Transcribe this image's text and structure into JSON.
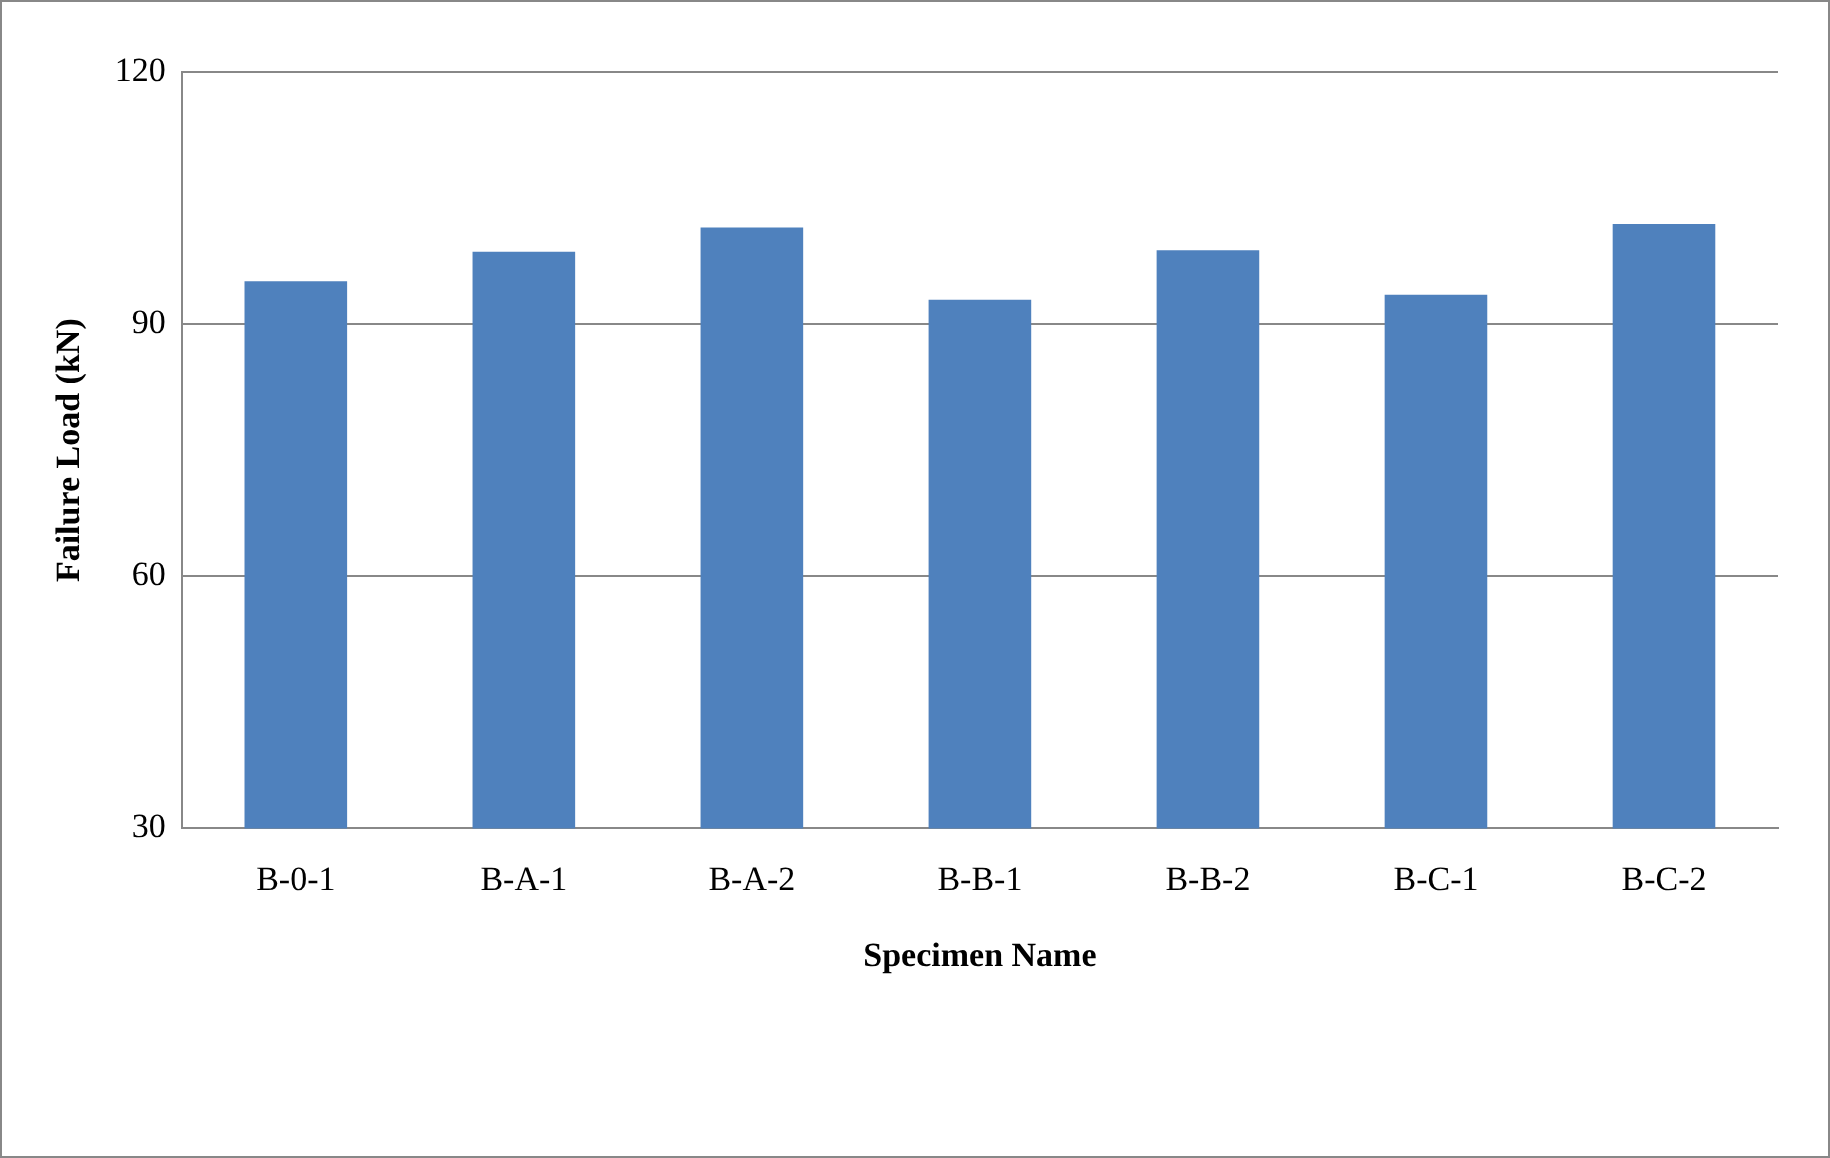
{
  "chart_data": {
    "type": "bar",
    "xlabel": "Specimen Name",
    "ylabel": "Failure Load (kN)",
    "categories": [
      "B-0-1",
      "B-A-1",
      "B-A-2",
      "B-B-1",
      "B-B-2",
      "B-C-1",
      "B-C-2"
    ],
    "values": [
      95.1,
      98.6,
      101.5,
      92.9,
      98.8,
      93.5,
      101.9
    ],
    "color": "#4f81bd",
    "ylim": [
      30,
      120
    ],
    "yticks": [
      30,
      60,
      90,
      120
    ],
    "grid": "y",
    "legend": false
  }
}
